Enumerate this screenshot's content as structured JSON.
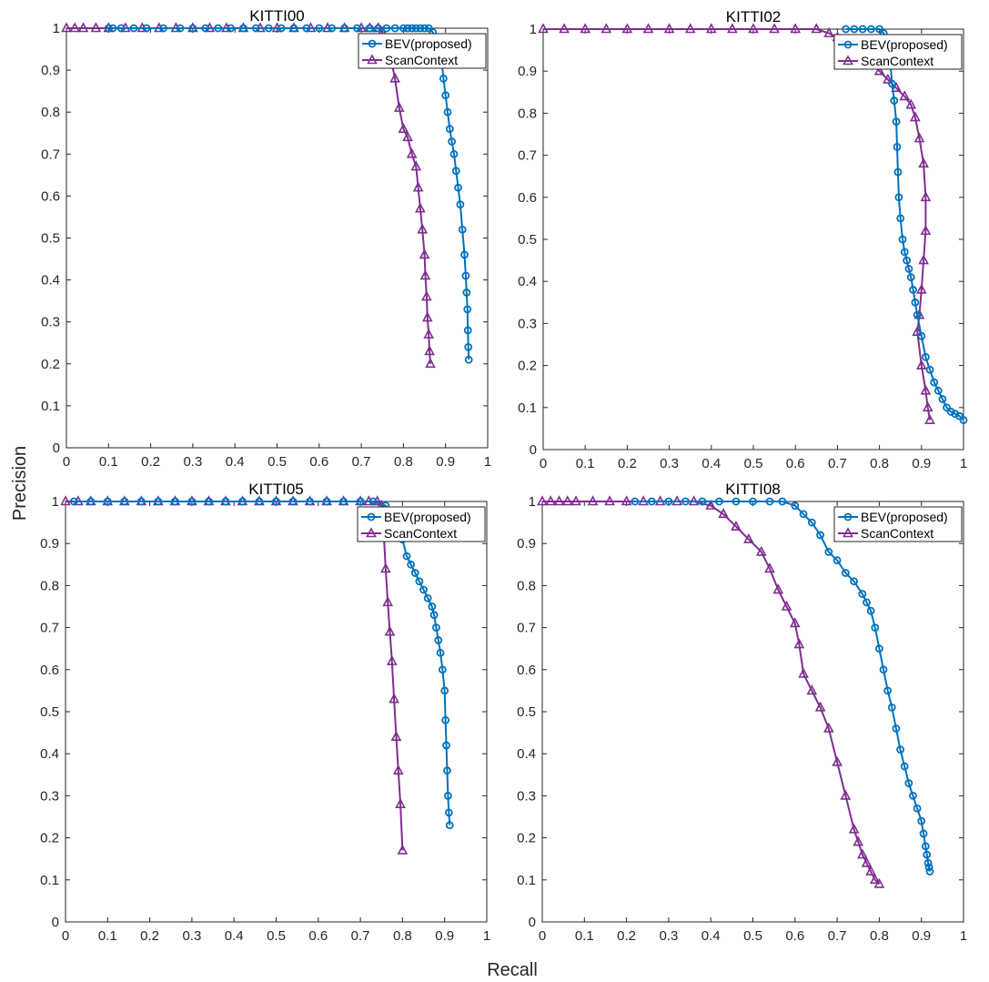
{
  "figure": {
    "xlabel": "Recall",
    "ylabel": "Precision"
  },
  "colors": {
    "bev": "#0072BD",
    "scan": "#7E2F8E"
  },
  "chart_data": [
    {
      "type": "line",
      "title": "KITTI00",
      "xlim": [
        0,
        1
      ],
      "ylim": [
        0,
        1
      ],
      "xticks": [
        0,
        0.1,
        0.2,
        0.3,
        0.4,
        0.5,
        0.6,
        0.7,
        0.8,
        0.9,
        1
      ],
      "yticks": [
        0,
        0.1,
        0.2,
        0.3,
        0.4,
        0.5,
        0.6,
        0.7,
        0.8,
        0.9,
        1
      ],
      "legend": "top-right",
      "grid": false,
      "series": [
        {
          "name": "BEV(proposed)",
          "marker": "circle",
          "x": [
            0.1,
            0.11,
            0.13,
            0.16,
            0.19,
            0.23,
            0.27,
            0.3,
            0.33,
            0.36,
            0.39,
            0.42,
            0.45,
            0.48,
            0.51,
            0.54,
            0.57,
            0.6,
            0.63,
            0.66,
            0.69,
            0.72,
            0.74,
            0.76,
            0.78,
            0.8,
            0.81,
            0.82,
            0.83,
            0.84,
            0.85,
            0.86,
            0.87,
            0.88,
            0.89,
            0.895,
            0.9,
            0.905,
            0.91,
            0.915,
            0.92,
            0.925,
            0.93,
            0.935,
            0.94,
            0.945,
            0.948,
            0.95,
            0.952,
            0.953,
            0.954,
            0.955
          ],
          "y": [
            1,
            1,
            1,
            1,
            1,
            1,
            1,
            1,
            1,
            1,
            1,
            1,
            1,
            1,
            1,
            1,
            1,
            1,
            1,
            1,
            1,
            1,
            1,
            1,
            1,
            1,
            1,
            1,
            1,
            1,
            1,
            1,
            0.99,
            0.97,
            0.93,
            0.88,
            0.84,
            0.8,
            0.76,
            0.73,
            0.7,
            0.66,
            0.62,
            0.58,
            0.52,
            0.46,
            0.41,
            0.37,
            0.33,
            0.28,
            0.24,
            0.21
          ]
        },
        {
          "name": "ScanContext",
          "marker": "triangle",
          "x": [
            0,
            0.02,
            0.04,
            0.07,
            0.1,
            0.14,
            0.18,
            0.22,
            0.26,
            0.3,
            0.34,
            0.38,
            0.42,
            0.46,
            0.5,
            0.54,
            0.58,
            0.62,
            0.66,
            0.7,
            0.72,
            0.74,
            0.75,
            0.76,
            0.77,
            0.78,
            0.79,
            0.8,
            0.81,
            0.82,
            0.83,
            0.835,
            0.84,
            0.845,
            0.85,
            0.852,
            0.855,
            0.857,
            0.86,
            0.862,
            0.864
          ],
          "y": [
            1,
            1,
            1,
            1,
            1,
            1,
            1,
            1,
            1,
            1,
            1,
            1,
            1,
            1,
            1,
            1,
            1,
            1,
            1,
            1,
            1,
            1,
            0.99,
            0.97,
            0.93,
            0.88,
            0.81,
            0.76,
            0.74,
            0.7,
            0.67,
            0.62,
            0.57,
            0.52,
            0.46,
            0.41,
            0.36,
            0.31,
            0.27,
            0.23,
            0.2
          ]
        }
      ]
    },
    {
      "type": "line",
      "title": "KITTI02",
      "xlim": [
        0,
        1
      ],
      "ylim": [
        0,
        1
      ],
      "xticks": [
        0,
        0.1,
        0.2,
        0.3,
        0.4,
        0.5,
        0.6,
        0.7,
        0.8,
        0.9,
        1
      ],
      "yticks": [
        0,
        0.1,
        0.2,
        0.3,
        0.4,
        0.5,
        0.6,
        0.7,
        0.8,
        0.9,
        1
      ],
      "legend": "top-right",
      "grid": false,
      "series": [
        {
          "name": "BEV(proposed)",
          "marker": "circle",
          "x": [
            0.72,
            0.74,
            0.76,
            0.78,
            0.8,
            0.81,
            0.82,
            0.825,
            0.83,
            0.835,
            0.84,
            0.842,
            0.844,
            0.846,
            0.85,
            0.855,
            0.86,
            0.865,
            0.87,
            0.875,
            0.88,
            0.885,
            0.89,
            0.9,
            0.91,
            0.92,
            0.93,
            0.94,
            0.95,
            0.96,
            0.97,
            0.98,
            0.99,
            1.0
          ],
          "y": [
            1,
            1,
            1,
            1,
            1,
            0.99,
            0.97,
            0.93,
            0.87,
            0.83,
            0.78,
            0.72,
            0.66,
            0.6,
            0.55,
            0.5,
            0.47,
            0.45,
            0.43,
            0.41,
            0.38,
            0.35,
            0.32,
            0.27,
            0.22,
            0.19,
            0.16,
            0.14,
            0.12,
            0.1,
            0.09,
            0.085,
            0.08,
            0.07
          ]
        },
        {
          "name": "ScanContext",
          "marker": "triangle",
          "x": [
            0,
            0.05,
            0.1,
            0.15,
            0.2,
            0.25,
            0.3,
            0.35,
            0.4,
            0.45,
            0.5,
            0.55,
            0.6,
            0.65,
            0.68,
            0.7,
            0.72,
            0.74,
            0.76,
            0.78,
            0.8,
            0.82,
            0.84,
            0.86,
            0.875,
            0.885,
            0.895,
            0.905,
            0.91,
            0.91,
            0.905,
            0.9,
            0.895,
            0.89,
            0.9,
            0.91,
            0.915,
            0.92
          ],
          "y": [
            1,
            1,
            1,
            1,
            1,
            1,
            1,
            1,
            1,
            1,
            1,
            1,
            1,
            1,
            0.99,
            0.98,
            0.97,
            0.96,
            0.94,
            0.92,
            0.9,
            0.88,
            0.86,
            0.84,
            0.82,
            0.79,
            0.74,
            0.68,
            0.6,
            0.52,
            0.45,
            0.38,
            0.32,
            0.28,
            0.2,
            0.14,
            0.1,
            0.07
          ]
        }
      ]
    },
    {
      "type": "line",
      "title": "KITTI05",
      "xlim": [
        0,
        1
      ],
      "ylim": [
        0,
        1
      ],
      "xticks": [
        0,
        0.1,
        0.2,
        0.3,
        0.4,
        0.5,
        0.6,
        0.7,
        0.8,
        0.9,
        1
      ],
      "yticks": [
        0,
        0.1,
        0.2,
        0.3,
        0.4,
        0.5,
        0.6,
        0.7,
        0.8,
        0.9,
        1
      ],
      "legend": "top-right",
      "grid": false,
      "series": [
        {
          "name": "BEV(proposed)",
          "marker": "circle",
          "x": [
            0.02,
            0.06,
            0.1,
            0.14,
            0.18,
            0.22,
            0.26,
            0.3,
            0.34,
            0.38,
            0.42,
            0.46,
            0.5,
            0.54,
            0.58,
            0.62,
            0.66,
            0.7,
            0.73,
            0.76,
            0.78,
            0.79,
            0.8,
            0.81,
            0.82,
            0.83,
            0.84,
            0.85,
            0.86,
            0.87,
            0.875,
            0.88,
            0.885,
            0.89,
            0.895,
            0.9,
            0.902,
            0.904,
            0.906,
            0.908,
            0.91,
            0.912
          ],
          "y": [
            1,
            1,
            1,
            1,
            1,
            1,
            1,
            1,
            1,
            1,
            1,
            1,
            1,
            1,
            1,
            1,
            1,
            1,
            1,
            0.99,
            0.97,
            0.95,
            0.91,
            0.87,
            0.85,
            0.83,
            0.81,
            0.79,
            0.77,
            0.75,
            0.73,
            0.7,
            0.67,
            0.64,
            0.6,
            0.55,
            0.48,
            0.42,
            0.36,
            0.3,
            0.26,
            0.23
          ]
        },
        {
          "name": "ScanContext",
          "marker": "triangle",
          "x": [
            0,
            0.03,
            0.06,
            0.1,
            0.14,
            0.18,
            0.22,
            0.26,
            0.3,
            0.34,
            0.38,
            0.42,
            0.46,
            0.5,
            0.54,
            0.58,
            0.62,
            0.66,
            0.7,
            0.72,
            0.74,
            0.75,
            0.755,
            0.76,
            0.765,
            0.77,
            0.775,
            0.78,
            0.785,
            0.79,
            0.795,
            0.8
          ],
          "y": [
            1,
            1,
            1,
            1,
            1,
            1,
            1,
            1,
            1,
            1,
            1,
            1,
            1,
            1,
            1,
            1,
            1,
            1,
            1,
            1,
            1,
            0.99,
            0.93,
            0.84,
            0.76,
            0.69,
            0.62,
            0.53,
            0.44,
            0.36,
            0.28,
            0.17
          ]
        }
      ]
    },
    {
      "type": "line",
      "title": "KITTI08",
      "xlim": [
        0,
        1
      ],
      "ylim": [
        0,
        1
      ],
      "xticks": [
        0,
        0.1,
        0.2,
        0.3,
        0.4,
        0.5,
        0.6,
        0.7,
        0.8,
        0.9,
        1
      ],
      "yticks": [
        0,
        0.1,
        0.2,
        0.3,
        0.4,
        0.5,
        0.6,
        0.7,
        0.8,
        0.9,
        1
      ],
      "legend": "top-right",
      "grid": false,
      "series": [
        {
          "name": "BEV(proposed)",
          "marker": "circle",
          "x": [
            0.22,
            0.26,
            0.3,
            0.34,
            0.38,
            0.42,
            0.46,
            0.5,
            0.54,
            0.57,
            0.6,
            0.62,
            0.64,
            0.66,
            0.68,
            0.7,
            0.72,
            0.74,
            0.76,
            0.77,
            0.78,
            0.79,
            0.8,
            0.81,
            0.82,
            0.83,
            0.84,
            0.85,
            0.86,
            0.87,
            0.88,
            0.89,
            0.9,
            0.905,
            0.91,
            0.913,
            0.916,
            0.918,
            0.92
          ],
          "y": [
            1,
            1,
            1,
            1,
            1,
            1,
            1,
            1,
            1,
            1,
            0.99,
            0.97,
            0.95,
            0.92,
            0.88,
            0.86,
            0.83,
            0.81,
            0.78,
            0.76,
            0.74,
            0.7,
            0.65,
            0.6,
            0.55,
            0.51,
            0.46,
            0.41,
            0.37,
            0.33,
            0.3,
            0.27,
            0.24,
            0.21,
            0.18,
            0.16,
            0.14,
            0.13,
            0.12
          ]
        },
        {
          "name": "ScanContext",
          "marker": "triangle",
          "x": [
            0,
            0.02,
            0.04,
            0.06,
            0.08,
            0.12,
            0.16,
            0.2,
            0.24,
            0.28,
            0.32,
            0.36,
            0.4,
            0.43,
            0.46,
            0.49,
            0.52,
            0.54,
            0.56,
            0.58,
            0.6,
            0.61,
            0.62,
            0.64,
            0.66,
            0.68,
            0.7,
            0.72,
            0.74,
            0.75,
            0.76,
            0.77,
            0.78,
            0.79,
            0.8
          ],
          "y": [
            1,
            1,
            1,
            1,
            1,
            1,
            1,
            1,
            1,
            1,
            1,
            1,
            0.99,
            0.97,
            0.94,
            0.91,
            0.88,
            0.84,
            0.79,
            0.75,
            0.71,
            0.66,
            0.59,
            0.55,
            0.51,
            0.46,
            0.38,
            0.3,
            0.22,
            0.19,
            0.16,
            0.14,
            0.12,
            0.1,
            0.09
          ]
        }
      ]
    }
  ]
}
